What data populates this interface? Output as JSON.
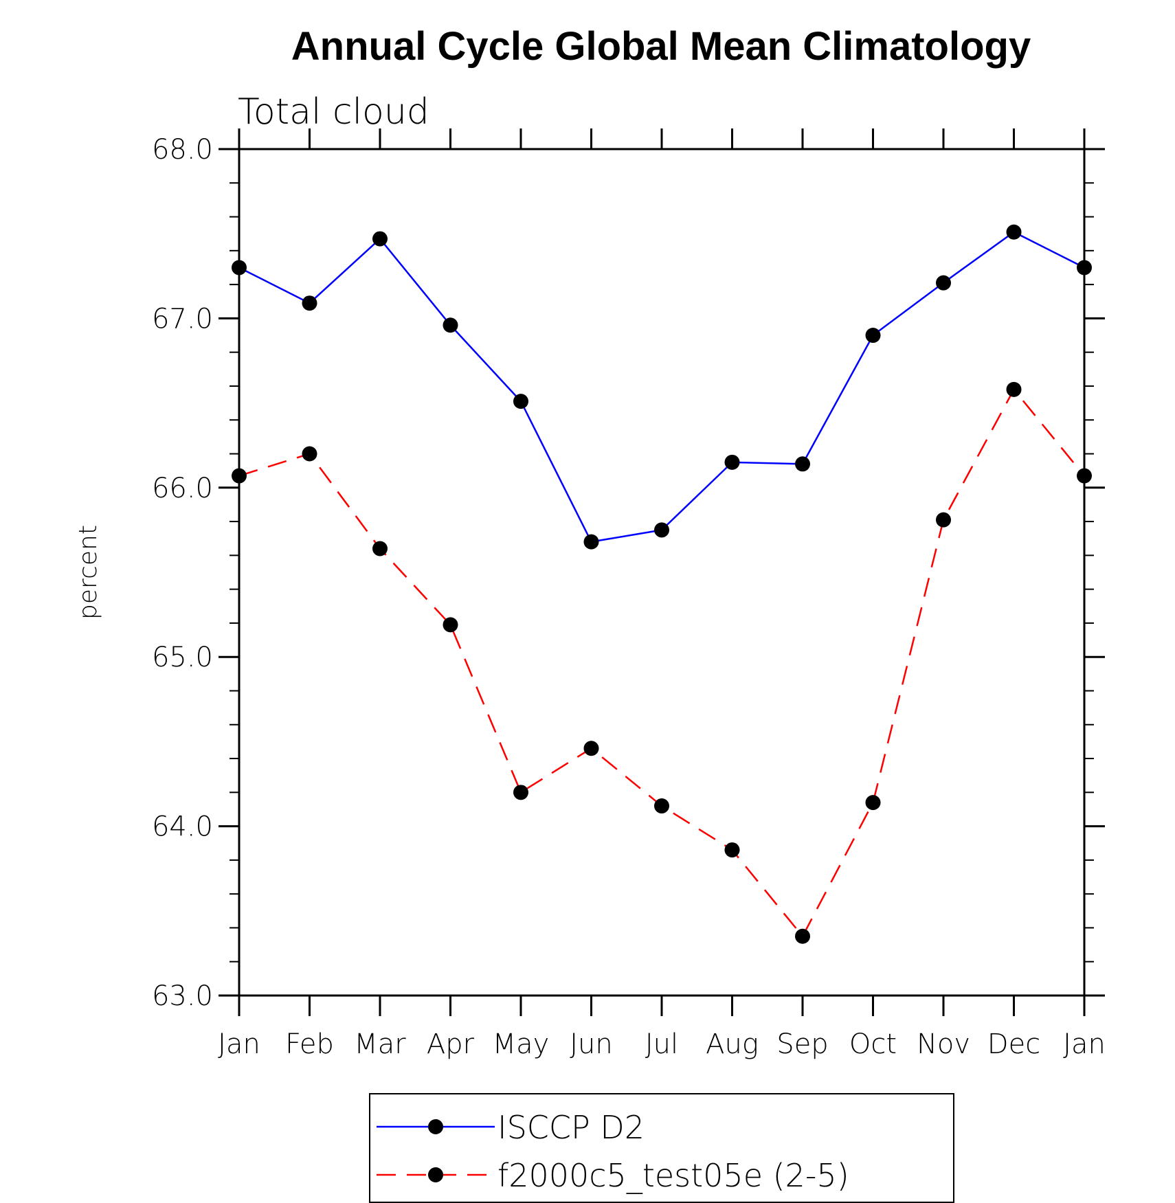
{
  "chart_data": {
    "type": "line",
    "title": "Annual Cycle Global Mean Climatology",
    "subtitle": "Total cloud",
    "xlabel": "",
    "ylabel": "percent",
    "categories": [
      "Jan",
      "Feb",
      "Mar",
      "Apr",
      "May",
      "Jun",
      "Jul",
      "Aug",
      "Sep",
      "Oct",
      "Nov",
      "Dec",
      "Jan"
    ],
    "ylim": [
      63.0,
      68.0
    ],
    "yticks": [
      "63.0",
      "64.0",
      "65.0",
      "66.0",
      "67.0",
      "68.0"
    ],
    "grid": false,
    "legend_position": "bottom-center",
    "series": [
      {
        "name": "ISCCP D2",
        "color": "#0000ff",
        "line_style": "solid",
        "marker": "filled-circle",
        "values": [
          67.3,
          67.09,
          67.47,
          66.96,
          66.51,
          65.68,
          65.75,
          66.15,
          66.14,
          66.9,
          67.21,
          67.51,
          67.3
        ]
      },
      {
        "name": "f2000c5_test05e (2-5)",
        "color": "#ff0000",
        "line_style": "dashed",
        "marker": "filled-circle",
        "values": [
          66.07,
          66.2,
          65.64,
          65.19,
          64.2,
          64.46,
          64.12,
          63.86,
          63.35,
          64.14,
          65.81,
          66.58,
          66.07
        ]
      }
    ]
  }
}
